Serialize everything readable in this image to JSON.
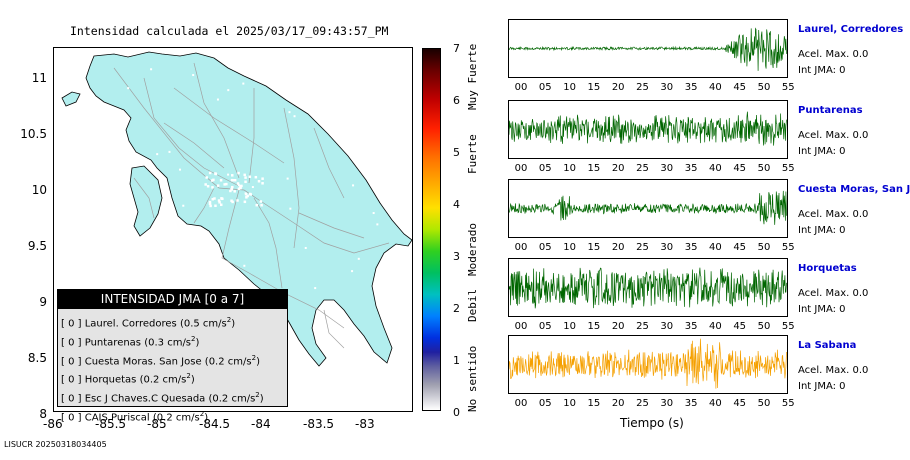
{
  "map": {
    "title": "Intensidad calculada el 2025/03/17_09:43:57_PM",
    "lon_ticks": [
      "-86",
      "-85.5",
      "-85",
      "-84.5",
      "-84",
      "-83.5",
      "-83"
    ],
    "lat_ticks": [
      "11",
      "10.5",
      "10",
      "9.5",
      "9",
      "8.5",
      "8"
    ],
    "land_color": "#b2eeee",
    "road_color": "#a0a0a0"
  },
  "colorbar": {
    "labels": [
      "7",
      "6",
      "5",
      "4",
      "3",
      "2",
      "1",
      "0"
    ],
    "categories": [
      "Muy Fuerte",
      "Fuerte",
      "Moderado",
      "Debil",
      "No sentido"
    ]
  },
  "legend": {
    "header": "INTENSIDAD JMA [0 a 7]",
    "rows": [
      {
        "int": "[ 0 ]",
        "station": "Laurel. Corredores",
        "value": "(0.5 cm/s",
        "exp": "2",
        "close": ")"
      },
      {
        "int": "[ 0 ]",
        "station": "Puntarenas",
        "value": "(0.3 cm/s",
        "exp": "2",
        "close": ")"
      },
      {
        "int": "[ 0 ]",
        "station": "Cuesta Moras. San Jose",
        "value": "(0.2 cm/s",
        "exp": "2",
        "close": ")"
      },
      {
        "int": "[ 0 ]",
        "station": "Horquetas",
        "value": "(0.2 cm/s",
        "exp": "2",
        "close": ")"
      },
      {
        "int": "[ 0 ]",
        "station": "Esc J Chaves.C Quesada",
        "value": "(0.2 cm/s",
        "exp": "2",
        "close": ")"
      },
      {
        "int": "[ 0 ]",
        "station": "CAIS Puriscal",
        "value": "(0.2 cm/s",
        "exp": "2",
        "close": ")"
      }
    ]
  },
  "footer_id": "LISUCR 20250318034405",
  "traces": {
    "time_ticks": [
      "00",
      "05",
      "10",
      "15",
      "20",
      "25",
      "30",
      "35",
      "40",
      "45",
      "50",
      "55"
    ],
    "axis_label": "Tiempo (s)",
    "stations": [
      {
        "name": "Laurel, Corredores",
        "acel": "Acel. Max. 0.0",
        "int": "Int JMA: 0",
        "color": "#006600"
      },
      {
        "name": "Puntarenas",
        "acel": "Acel. Max. 0.0",
        "int": "Int JMA: 0",
        "color": "#006600"
      },
      {
        "name": "Cuesta Moras, San Jose",
        "acel": "Acel. Max. 0.0",
        "int": "Int JMA: 0",
        "color": "#006600"
      },
      {
        "name": "Horquetas",
        "acel": "Acel. Max. 0.0",
        "int": "Int JMA: 0",
        "color": "#006600"
      },
      {
        "name": "La Sabana",
        "acel": "Acel. Max. 0.0",
        "int": "Int JMA: 0",
        "color": "#f5a000"
      }
    ]
  }
}
